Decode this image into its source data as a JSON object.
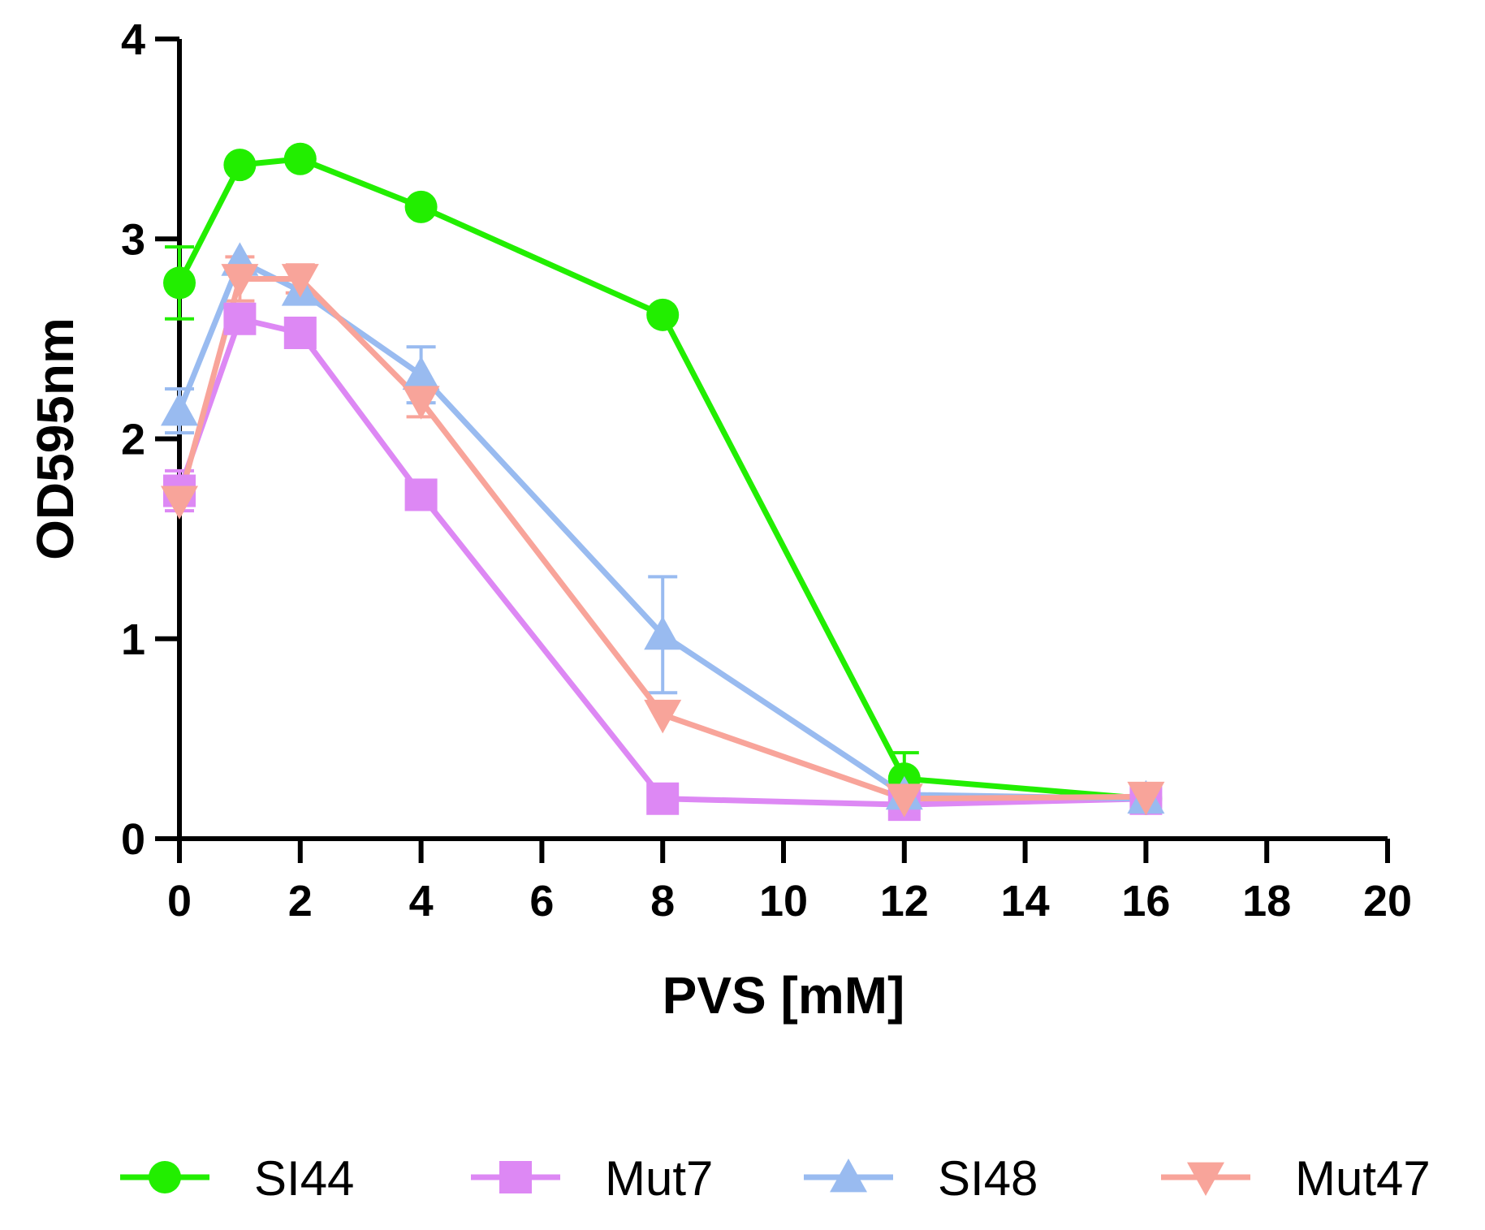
{
  "chart_data": {
    "type": "line",
    "title": "",
    "xlabel": "PVS [mM]",
    "ylabel": "OD595nm",
    "xlim": [
      0,
      20
    ],
    "ylim": [
      0,
      4
    ],
    "xticks": [
      0,
      2,
      4,
      6,
      8,
      10,
      12,
      14,
      16,
      18,
      20
    ],
    "yticks": [
      0,
      1,
      2,
      3,
      4
    ],
    "grid": false,
    "legend_position": "bottom",
    "x": [
      0,
      1,
      2,
      4,
      8,
      12,
      16
    ],
    "series": [
      {
        "name": "SI44",
        "color": "#22ee00",
        "marker": "circle",
        "values": [
          2.78,
          3.37,
          3.4,
          3.16,
          2.62,
          0.3,
          0.2
        ],
        "errors": [
          0.18,
          0.0,
          0.0,
          0.0,
          0.0,
          0.13,
          0.0
        ]
      },
      {
        "name": "Mut7",
        "color": "#dd88f4",
        "marker": "square",
        "values": [
          1.74,
          2.6,
          2.53,
          1.72,
          0.2,
          0.17,
          0.2
        ],
        "errors": [
          0.1,
          0.0,
          0.0,
          0.0,
          0.0,
          0.0,
          0.0
        ]
      },
      {
        "name": "SI48",
        "color": "#99bbf0",
        "marker": "triangle-up",
        "values": [
          2.14,
          2.89,
          2.74,
          2.32,
          1.02,
          0.22,
          0.2
        ],
        "errors": [
          0.11,
          0.0,
          0.0,
          0.14,
          0.29,
          0.0,
          0.0
        ]
      },
      {
        "name": "Mut47",
        "color": "#f8a49a",
        "marker": "triangle-down",
        "values": [
          1.69,
          2.8,
          2.8,
          2.19,
          0.62,
          0.2,
          0.21
        ],
        "errors": [
          0.0,
          0.11,
          0.07,
          0.08,
          0.0,
          0.0,
          0.0
        ]
      }
    ]
  }
}
